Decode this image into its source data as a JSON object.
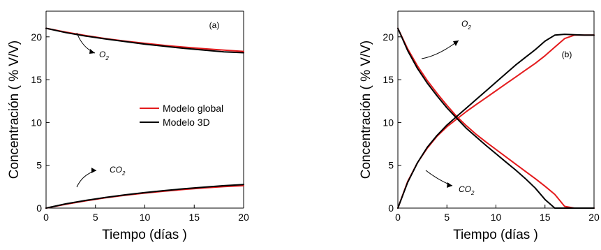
{
  "chart_data": [
    {
      "type": "line",
      "panel_label": "(a)",
      "xlabel": "Tiempo (días )",
      "ylabel": "Concentración ( % V/V)",
      "xlim": [
        0,
        20
      ],
      "ylim": [
        0,
        23
      ],
      "xticks": [
        0,
        5,
        10,
        15,
        20
      ],
      "yticks": [
        0,
        5,
        10,
        15,
        20
      ],
      "legend": {
        "placement": "center-right",
        "entries": [
          {
            "name": "Modelo global",
            "color": "#e41a1c"
          },
          {
            "name": "Modelo 3D",
            "color": "#000000"
          }
        ]
      },
      "annotations": [
        {
          "base": "O",
          "sub": "2"
        },
        {
          "base": "CO",
          "sub": "2"
        }
      ],
      "series": [
        {
          "name": "Modelo global",
          "color": "#e41a1c",
          "x": [
            0,
            2,
            4,
            6,
            8,
            10,
            12,
            14,
            16,
            18,
            20
          ],
          "y": [
            21.0,
            20.55,
            20.15,
            19.8,
            19.5,
            19.25,
            19.0,
            18.8,
            18.62,
            18.45,
            18.3
          ]
        },
        {
          "name": "Modelo 3D",
          "color": "#000000",
          "x": [
            0,
            2,
            4,
            6,
            8,
            10,
            12,
            14,
            16,
            18,
            20
          ],
          "y": [
            21.0,
            20.5,
            20.1,
            19.75,
            19.45,
            19.15,
            18.9,
            18.65,
            18.45,
            18.25,
            18.15
          ]
        },
        {
          "name": "Modelo global",
          "color": "#e41a1c",
          "x": [
            0,
            2,
            4,
            6,
            8,
            10,
            12,
            14,
            16,
            18,
            20
          ],
          "y": [
            0.0,
            0.45,
            0.85,
            1.2,
            1.5,
            1.75,
            1.98,
            2.18,
            2.36,
            2.5,
            2.62
          ]
        },
        {
          "name": "Modelo 3D",
          "color": "#000000",
          "x": [
            0,
            2,
            4,
            6,
            8,
            10,
            12,
            14,
            16,
            18,
            20
          ],
          "y": [
            0.0,
            0.5,
            0.9,
            1.25,
            1.55,
            1.82,
            2.05,
            2.27,
            2.45,
            2.62,
            2.75
          ]
        }
      ]
    },
    {
      "type": "line",
      "panel_label": "(b)",
      "xlabel": "Tiempo (días )",
      "ylabel": "Concentración ( % V/V)",
      "xlim": [
        0,
        20
      ],
      "ylim": [
        0,
        23
      ],
      "xticks": [
        0,
        5,
        10,
        15,
        20
      ],
      "yticks": [
        0,
        5,
        10,
        15,
        20
      ],
      "annotations": [
        {
          "base": "O",
          "sub": "2"
        },
        {
          "base": "CO",
          "sub": "2"
        }
      ],
      "series": [
        {
          "name": "Modelo global",
          "color": "#e41a1c",
          "x": [
            0,
            1,
            2,
            3,
            4,
            5,
            6,
            7,
            8,
            9,
            10,
            11,
            12,
            13,
            14,
            15,
            16,
            17,
            18,
            19,
            20
          ],
          "y": [
            21.0,
            18.6,
            16.6,
            14.9,
            13.4,
            12.0,
            10.7,
            9.6,
            8.6,
            7.7,
            6.85,
            6.0,
            5.15,
            4.3,
            3.45,
            2.55,
            1.6,
            0.2,
            0.0,
            0.0,
            0.0
          ]
        },
        {
          "name": "Modelo 3D",
          "color": "#000000",
          "x": [
            0,
            1,
            2,
            3,
            4,
            5,
            6,
            7,
            8,
            9,
            10,
            11,
            12,
            13,
            14,
            15,
            16,
            17,
            18,
            19,
            20
          ],
          "y": [
            21.0,
            18.4,
            16.3,
            14.6,
            13.1,
            11.7,
            10.5,
            9.3,
            8.3,
            7.3,
            6.35,
            5.4,
            4.45,
            3.45,
            2.35,
            1.0,
            0.0,
            0.0,
            0.0,
            0.0,
            0.0
          ]
        },
        {
          "name": "Modelo global",
          "color": "#e41a1c",
          "x": [
            0,
            1,
            2,
            3,
            4,
            5,
            6,
            7,
            8,
            9,
            10,
            11,
            12,
            13,
            14,
            15,
            16,
            17,
            18,
            19,
            20
          ],
          "y": [
            0.0,
            3.1,
            5.3,
            7.0,
            8.4,
            9.5,
            10.4,
            11.3,
            12.1,
            12.9,
            13.7,
            14.5,
            15.3,
            16.1,
            16.9,
            17.8,
            18.8,
            19.8,
            20.2,
            20.2,
            20.2
          ]
        },
        {
          "name": "Modelo 3D",
          "color": "#000000",
          "x": [
            0,
            1,
            2,
            3,
            4,
            5,
            6,
            7,
            8,
            9,
            10,
            11,
            12,
            13,
            14,
            15,
            16,
            17,
            18,
            19,
            20
          ],
          "y": [
            0.0,
            3.0,
            5.3,
            7.1,
            8.5,
            9.7,
            10.7,
            11.7,
            12.7,
            13.7,
            14.7,
            15.7,
            16.7,
            17.6,
            18.5,
            19.5,
            20.2,
            20.3,
            20.25,
            20.2,
            20.2
          ]
        }
      ]
    }
  ]
}
